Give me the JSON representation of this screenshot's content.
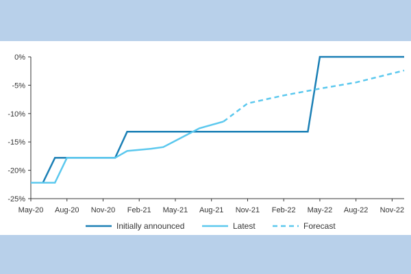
{
  "chart_data": {
    "type": "line",
    "title": "",
    "xlabel": "",
    "ylabel": "",
    "x_ticks": [
      "May-20",
      "Aug-20",
      "Nov-20",
      "Feb-21",
      "May-21",
      "Aug-21",
      "Nov-21",
      "Feb-22",
      "May-22",
      "Aug-22",
      "Nov-22"
    ],
    "y_ticks": [
      "0%",
      "-5%",
      "-10%",
      "-15%",
      "-20%",
      "-25%"
    ],
    "ylim": [
      -25,
      0
    ],
    "xlim": [
      "2020-05",
      "2022-12"
    ],
    "grid": false,
    "legend_position": "bottom",
    "series": [
      {
        "name": "Initially announced",
        "color": "#1a7fb5",
        "style": "solid",
        "points": [
          [
            "2020-05",
            -22.2
          ],
          [
            "2020-06",
            -22.2
          ],
          [
            "2020-07",
            -17.8
          ],
          [
            "2020-08",
            -17.8
          ],
          [
            "2020-12",
            -17.8
          ],
          [
            "2021-01",
            -13.2
          ],
          [
            "2022-04",
            -13.2
          ],
          [
            "2022-05",
            0
          ],
          [
            "2022-12",
            0
          ]
        ]
      },
      {
        "name": "Latest",
        "color": "#5bc8ee",
        "style": "solid",
        "points": [
          [
            "2020-05",
            -22.2
          ],
          [
            "2020-07",
            -22.2
          ],
          [
            "2020-08",
            -17.8
          ],
          [
            "2020-12",
            -17.8
          ],
          [
            "2021-01",
            -16.6
          ],
          [
            "2021-03",
            -16.2
          ],
          [
            "2021-04",
            -15.9
          ],
          [
            "2021-07",
            -12.6
          ],
          [
            "2021-09",
            -11.4
          ]
        ]
      },
      {
        "name": "Forecast",
        "color": "#5bc8ee",
        "style": "dashed",
        "points": [
          [
            "2021-09",
            -11.4
          ],
          [
            "2021-11",
            -8.2
          ],
          [
            "2022-02",
            -6.8
          ],
          [
            "2022-05",
            -5.6
          ],
          [
            "2022-08",
            -4.5
          ],
          [
            "2022-12",
            -2.4
          ]
        ]
      }
    ]
  }
}
